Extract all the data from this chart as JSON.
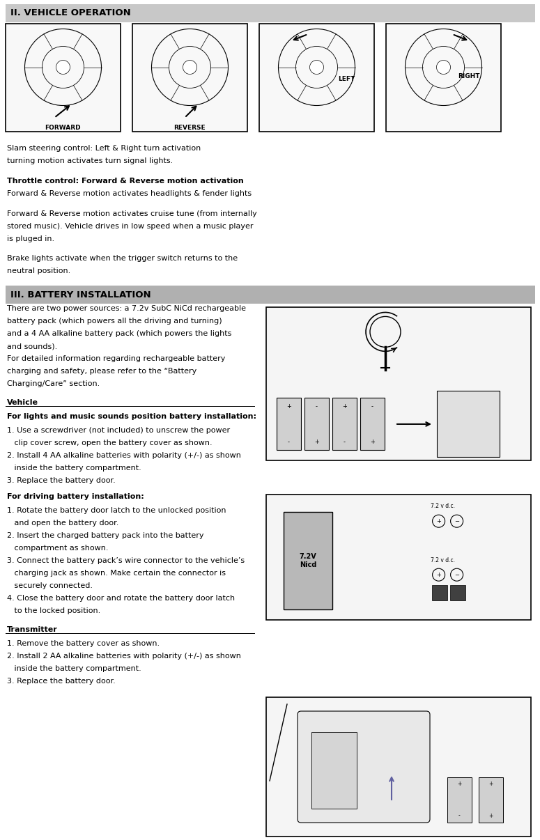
{
  "bg_color": "#ffffff",
  "header1_bg": "#c8c8c8",
  "header1_text": "II. VEHICLE OPERATION",
  "header2_bg": "#b0b0b0",
  "header2_text": "III. BATTERY INSTALLATION",
  "section1_lines": [
    "Slam steering control: Left & Right turn activation",
    "turning motion activates turn signal lights.",
    "",
    "Throttle control: Forward & Reverse motion activation",
    "Forward & Reverse motion activates headlights & fender lights",
    "",
    "Forward & Reverse motion activates cruise tune (from internally",
    "stored music). Vehicle drives in low speed when a music player",
    "is pluged in.",
    "",
    "Brake lights activate when the trigger switch returns to the",
    "neutral position."
  ],
  "throttle_bold_line": "Throttle control: Forward & Reverse motion activation",
  "battery_intro_lines": [
    "There are two power sources: a 7.2v SubC NiCd rechargeable",
    "battery pack (which powers all the driving and turning)",
    "and a 4 AA alkaline battery pack (which powers the lights",
    "and sounds).",
    "For detailed information regarding rechargeable battery",
    "charging and safety, please refer to the “Battery",
    "Charging/Care” section."
  ],
  "vehicle_label": "Vehicle",
  "lights_bold": "For lights and music sounds position battery installation:",
  "lights_steps": [
    "1. Use a screwdriver (not included) to unscrew the power",
    "   clip cover screw, open the battery cover as shown.",
    "2. Install 4 AA alkaline batteries with polarity (+/-) as shown",
    "   inside the battery compartment.",
    "3. Replace the battery door."
  ],
  "driving_bold": "For driving battery installation:",
  "driving_steps": [
    "1. Rotate the battery door latch to the unlocked position",
    "   and open the battery door.",
    "2. Insert the charged battery pack into the battery",
    "   compartment as shown.",
    "3. Connect the battery pack’s wire connector to the vehicle’s",
    "   charging jack as shown. Make certain the connector is",
    "   securely connected.",
    "4. Close the battery door and rotate the battery door latch",
    "   to the locked position."
  ],
  "transmitter_label": "Transmitter",
  "transmitter_steps": [
    "1. Remove the battery cover as shown.",
    "2. Install 2 AA alkaline batteries with polarity (+/-) as shown",
    "   inside the battery compartment.",
    "3. Replace the battery door."
  ],
  "diagram_labels": [
    "FORWARD",
    "REVERSE",
    "LEFT",
    "RIGHT"
  ],
  "page_width": 7.75,
  "page_height": 12.06
}
